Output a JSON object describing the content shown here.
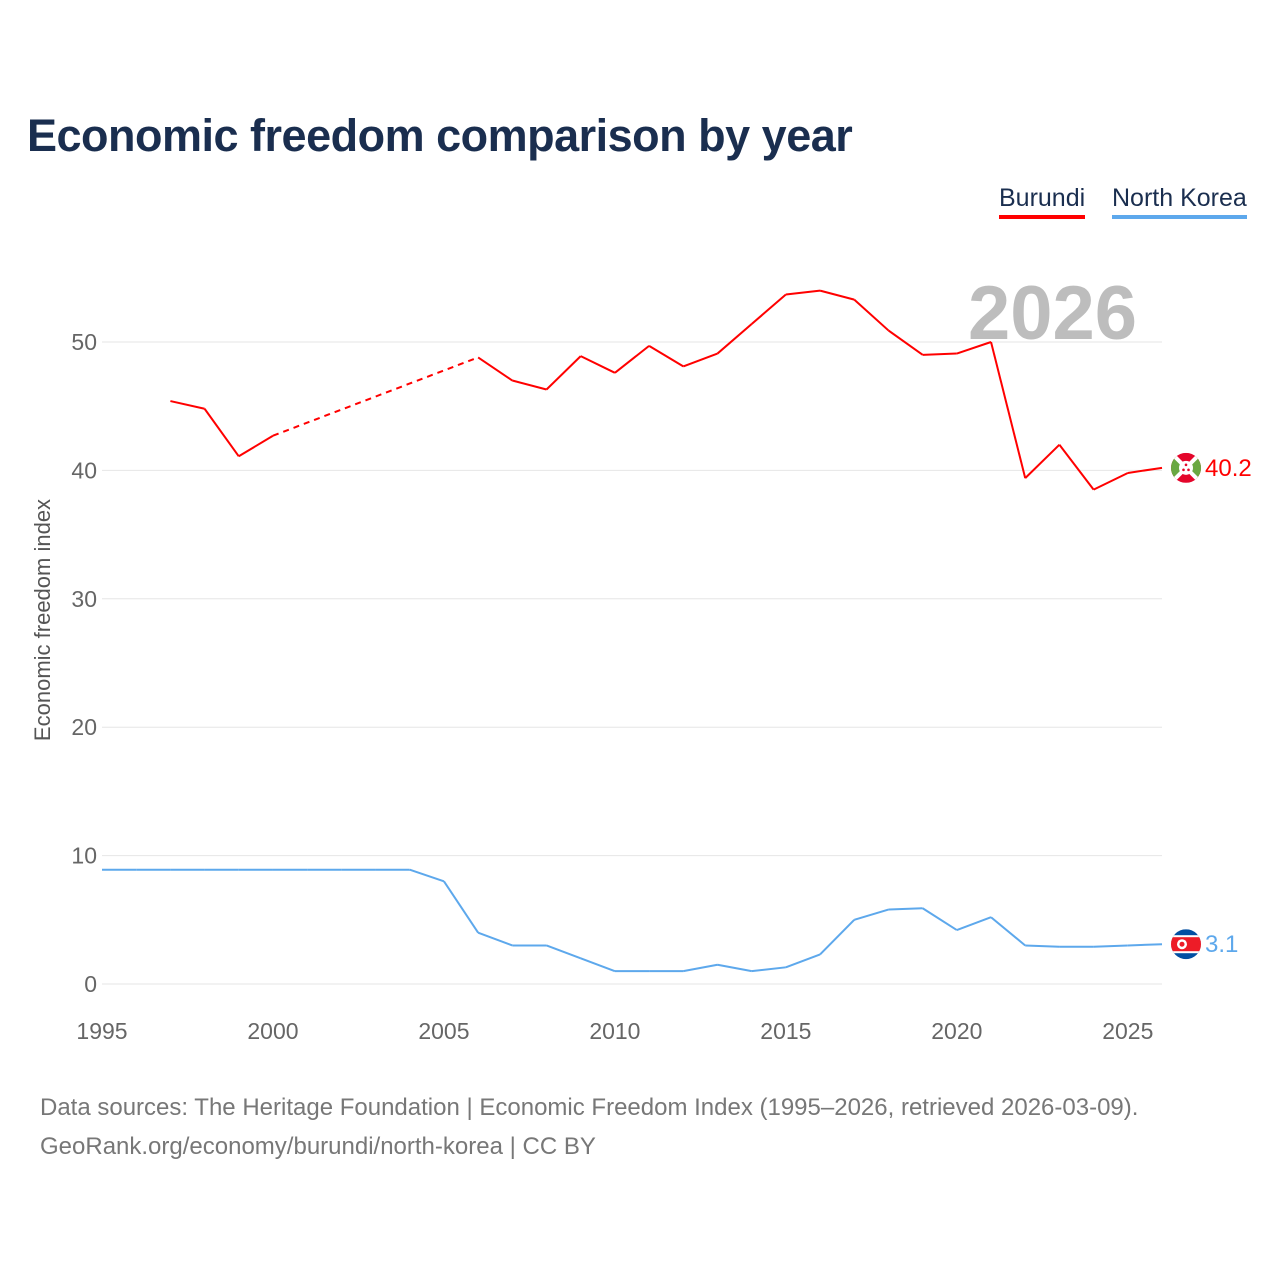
{
  "chart_data": {
    "type": "line",
    "title": "Economic freedom comparison by year",
    "ylabel": "Economic freedom index",
    "xlabel": "",
    "xlim": [
      1995,
      2026
    ],
    "ylim": [
      0,
      55
    ],
    "xticks": [
      "1995",
      "2000",
      "2005",
      "2010",
      "2015",
      "2020",
      "2025"
    ],
    "yticks": [
      "0",
      "10",
      "20",
      "30",
      "40",
      "50"
    ],
    "grid": true,
    "legend_position": "top-right",
    "current_year": "2026",
    "x": [
      1995,
      1996,
      1997,
      1998,
      1999,
      2000,
      2001,
      2002,
      2003,
      2004,
      2005,
      2006,
      2007,
      2008,
      2009,
      2010,
      2011,
      2012,
      2013,
      2014,
      2015,
      2016,
      2017,
      2018,
      2019,
      2020,
      2021,
      2022,
      2023,
      2024,
      2025,
      2026
    ],
    "series": [
      {
        "name": "Burundi",
        "color": "#ff0000",
        "end_label": "40.2",
        "flag": "burundi-flag",
        "missing_style": "dashed",
        "values": [
          null,
          null,
          45.4,
          44.8,
          41.1,
          42.7,
          null,
          null,
          null,
          null,
          null,
          48.8,
          47.0,
          46.3,
          48.9,
          47.6,
          49.7,
          48.1,
          49.1,
          51.4,
          53.7,
          54.0,
          53.3,
          50.9,
          49.0,
          49.1,
          50.0,
          39.4,
          42.0,
          38.5,
          39.8,
          40.2
        ]
      },
      {
        "name": "North Korea",
        "color": "#5da8ec",
        "end_label": "3.1",
        "flag": "north-korea-flag",
        "values": [
          8.9,
          8.9,
          8.9,
          8.9,
          8.9,
          8.9,
          8.9,
          8.9,
          8.9,
          8.9,
          8.0,
          4.0,
          3.0,
          3.0,
          2.0,
          1.0,
          1.0,
          1.0,
          1.5,
          1.0,
          1.3,
          2.3,
          5.0,
          5.8,
          5.9,
          4.2,
          5.2,
          3.0,
          2.9,
          2.9,
          3.0,
          3.1
        ]
      }
    ]
  },
  "source": {
    "line1": "Data sources: The Heritage Foundation | Economic Freedom Index (1995–2026, retrieved 2026-03-09).",
    "line2": "GeoRank.org/economy/burundi/north-korea | CC BY"
  }
}
